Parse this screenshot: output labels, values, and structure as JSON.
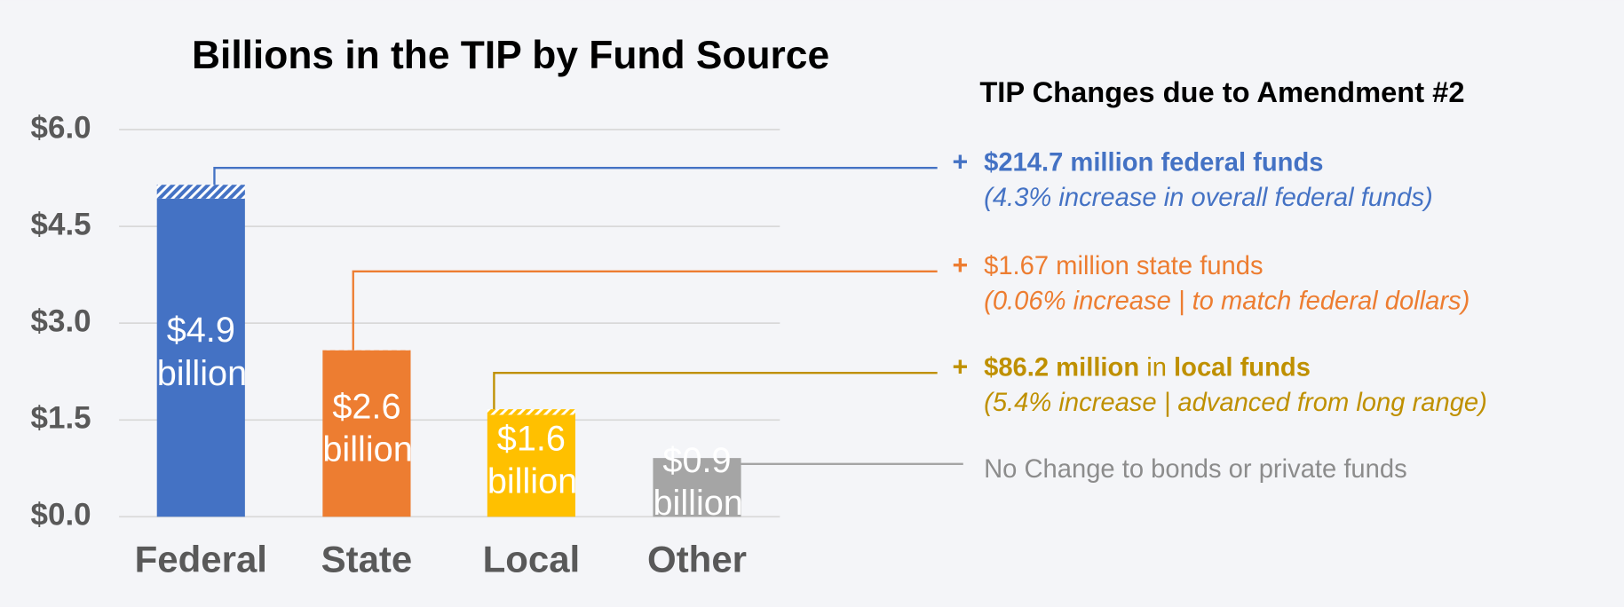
{
  "chart_data": {
    "type": "stacked_bar",
    "title": "Billions in the TIP by Fund Source",
    "categories": [
      "Federal",
      "State",
      "Local",
      "Other"
    ],
    "series": [
      {
        "color": "#4472c4",
        "colors": [
          "#4472c4",
          "#ed7d31",
          "#ffc000",
          "#a5a5a5"
        ],
        "values": [
          4.93,
          2.58,
          1.58,
          0.91
        ],
        "value_labels": [
          "$4.9 billion",
          "$2.6 billion",
          "$1.6 billion",
          "$0.9 billion"
        ]
      },
      {
        "color": "#4472c4",
        "colors": [
          "#4472c4",
          "#ed7d31",
          "#ffc000",
          "#a5a5a5"
        ],
        "pattern": "hatch",
        "values": [
          0.2147,
          0.00167,
          0.0862,
          0
        ]
      }
    ],
    "ylim": [
      0,
      6
    ],
    "yticks": [
      {
        "value": 0,
        "label": "$0.0"
      },
      {
        "value": 1.5,
        "label": "$1.5"
      },
      {
        "value": 3,
        "label": "$3.0"
      },
      {
        "value": 4.5,
        "label": "$4.5"
      },
      {
        "value": 6,
        "label": "$6.0"
      }
    ],
    "grid": true,
    "annotation_title": "TIP Changes due to Amendment #2",
    "annotations": [
      {
        "marker": "+",
        "color": "#4472c4",
        "parts": [
          {
            "text": "$214.7 million federal funds",
            "bold": true
          }
        ],
        "note": "(4.3% increase in overall federal funds)"
      },
      {
        "marker": "+",
        "color": "#ed7d31",
        "parts": [
          {
            "text": "$1.67 million state funds",
            "bold": false
          }
        ],
        "note": "(0.06% increase | to match federal dollars)"
      },
      {
        "marker": "+",
        "color": "#bf9000",
        "parts": [
          {
            "text": "$86.2 million",
            "bold": true
          },
          {
            "text": " in ",
            "bold": false
          },
          {
            "text": "local funds",
            "bold": true
          }
        ],
        "note": "(5.4% increase | advanced from long range)"
      },
      {
        "color": "#8c8c8c",
        "parts": [
          {
            "text": "No Change to bonds or private funds",
            "bold": false
          }
        ]
      }
    ]
  }
}
